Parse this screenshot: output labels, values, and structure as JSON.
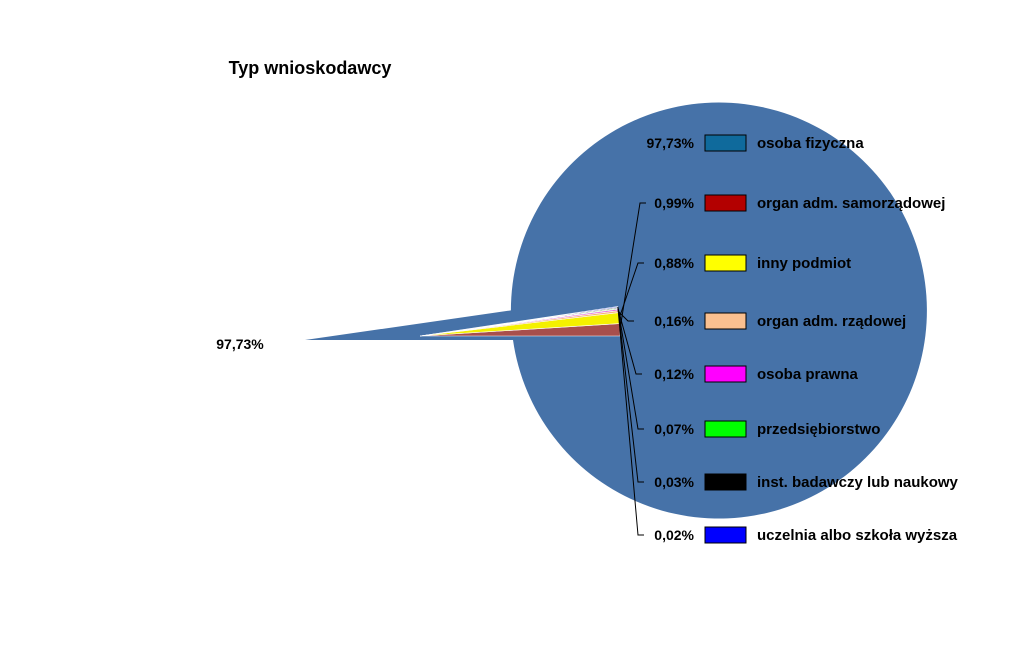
{
  "chart_data": {
    "type": "pie",
    "title": "Typ  wnioskodawcy",
    "inner_label": "97,73%",
    "legend_placement": "right",
    "slices": [
      {
        "label": "osoba  fizyczna",
        "value": 97.73,
        "display": "97,73%",
        "color": "#4672A8",
        "legend_color": "#0F6A9C"
      },
      {
        "label": "organ  adm.  samorządowej",
        "value": 0.99,
        "display": "0,99%",
        "color": "#A84F4C",
        "legend_color": "#B30000"
      },
      {
        "label": "inny  podmiot",
        "value": 0.88,
        "display": "0,88%",
        "color": "#F4F000",
        "legend_color": "#FFFF00"
      },
      {
        "label": "organ  adm.  rządowej",
        "value": 0.16,
        "display": "0,16%",
        "color": "#F6B37E",
        "legend_color": "#FAC090"
      },
      {
        "label": "osoba  prawna",
        "value": 0.12,
        "display": "0,12%",
        "color": "#E24FD6",
        "legend_color": "#FF00FF"
      },
      {
        "label": "przedsiębiorstwo",
        "value": 0.07,
        "display": "0,07%",
        "color": "#33DD33",
        "legend_color": "#00FF00"
      },
      {
        "label": "inst. badawczy  lub  naukowy",
        "value": 0.03,
        "display": "0,03%",
        "color": "#222222",
        "legend_color": "#000000"
      },
      {
        "label": "uczelnia  albo  szkoła  wyższa",
        "value": 0.02,
        "display": "0,02%",
        "color": "#2233DD",
        "legend_color": "#0000FF"
      }
    ]
  }
}
